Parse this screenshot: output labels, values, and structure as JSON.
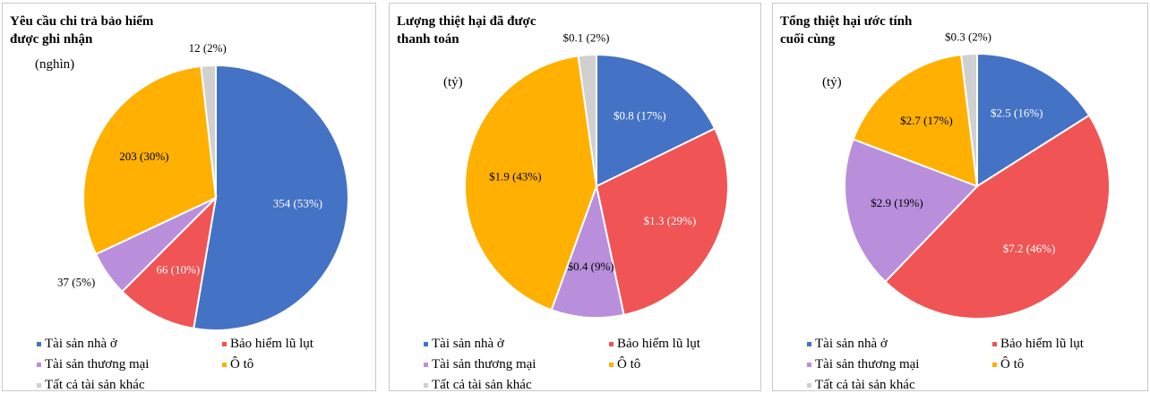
{
  "chart_data": [
    {
      "type": "pie",
      "title": "Yêu cầu chi trả bảo hiểm được ghi nhận",
      "subtitle": "(nghìn)",
      "categories": [
        "Tài sản nhà ở",
        "Bảo hiểm lũ lụt",
        "Tài sản thương mại",
        "Ô tô",
        "Tất cả tài sản khác"
      ],
      "values": [
        354,
        66,
        37,
        203,
        12
      ],
      "value_labels": [
        "354 (53%)",
        "66  (10%)",
        "37 (5%)",
        "203 (30%)",
        "12 (2%)"
      ],
      "colors": [
        "#4472c4",
        "#f05454",
        "#b98fdc",
        "#ffb000",
        "#d0d0d0"
      ]
    },
    {
      "type": "pie",
      "title": "Lượng thiệt hại đã được thanh toán",
      "subtitle": "(tỷ)",
      "categories": [
        "Tài sản nhà ở",
        "Bảo hiểm lũ lụt",
        "Tài sản thương mại",
        "Ô tô",
        "Tất cả tài sản khác"
      ],
      "values": [
        0.8,
        1.3,
        0.4,
        1.9,
        0.1
      ],
      "value_labels": [
        "$0.8 (17%)",
        "$1.3 (29%)",
        "$0.4 (9%)",
        "$1.9 (43%)",
        "$0.1  (2%)"
      ],
      "colors": [
        "#4472c4",
        "#f05454",
        "#b98fdc",
        "#ffb000",
        "#d0d0d0"
      ]
    },
    {
      "type": "pie",
      "title": "Tổng thiệt hại ước tính cuối cùng",
      "subtitle": "(tỷ)",
      "categories": [
        "Tài sản nhà ở",
        "Bảo hiểm lũ lụt",
        "Tài sản thương mại",
        "Ô tô",
        "Tất cả tài sản khác"
      ],
      "values": [
        2.5,
        7.2,
        2.9,
        2.7,
        0.3
      ],
      "value_labels": [
        "$2.5 (16%)",
        "$7.2  (46%)",
        "$2.9 (19%)",
        "$2.7 (17%)",
        "$0.3 (2%)"
      ],
      "colors": [
        "#4472c4",
        "#f05454",
        "#b98fdc",
        "#ffb000",
        "#d0d0d0"
      ]
    }
  ]
}
